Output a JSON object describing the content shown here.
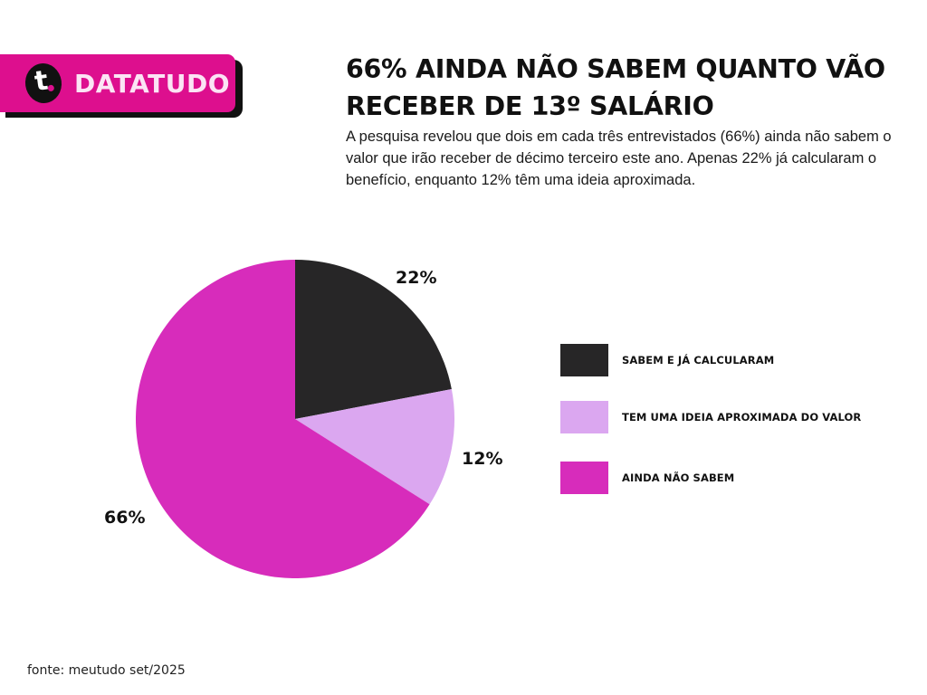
{
  "brand": {
    "logo_letter": "t",
    "name": "DATATUDO",
    "color": "#dd0f8e"
  },
  "header": {
    "title": "66% AINDA NÃO SABEM QUANTO VÃO RECEBER DE 13º SALÁRIO",
    "subtitle": "A pesquisa revelou que dois em cada três entrevistados (66%) ainda não sabem o valor que irão receber de décimo terceiro este ano. Apenas 22% já calcularam o benefício, enquanto 12% têm uma ideia aproximada."
  },
  "legend": [
    {
      "label": "SABEM E JÁ CALCULARAM",
      "color": "#272627"
    },
    {
      "label": "TEM UMA IDEIA APROXIMADA DO VALOR",
      "color": "#dba7f0"
    },
    {
      "label": "AINDA NÃO SABEM",
      "color": "#d72cbb"
    }
  ],
  "slice_labels": {
    "s22": "22%",
    "s12": "12%",
    "s66": "66%"
  },
  "footer": {
    "source": "fonte: meutudo set/2025"
  },
  "chart_data": {
    "type": "pie",
    "title": "66% AINDA NÃO SABEM QUANTO VÃO RECEBER DE 13º SALÁRIO",
    "categories": [
      "SABEM E JÁ CALCULARAM",
      "TEM UMA IDEIA APROXIMADA DO VALOR",
      "AINDA NÃO SABEM"
    ],
    "values": [
      22,
      12,
      66
    ],
    "unit": "%",
    "colors": [
      "#272627",
      "#dba7f0",
      "#d72cbb"
    ],
    "start_angle": "12 o'clock, clockwise",
    "legend_position": "right",
    "data_labels": [
      "22%",
      "12%",
      "66%"
    ]
  }
}
